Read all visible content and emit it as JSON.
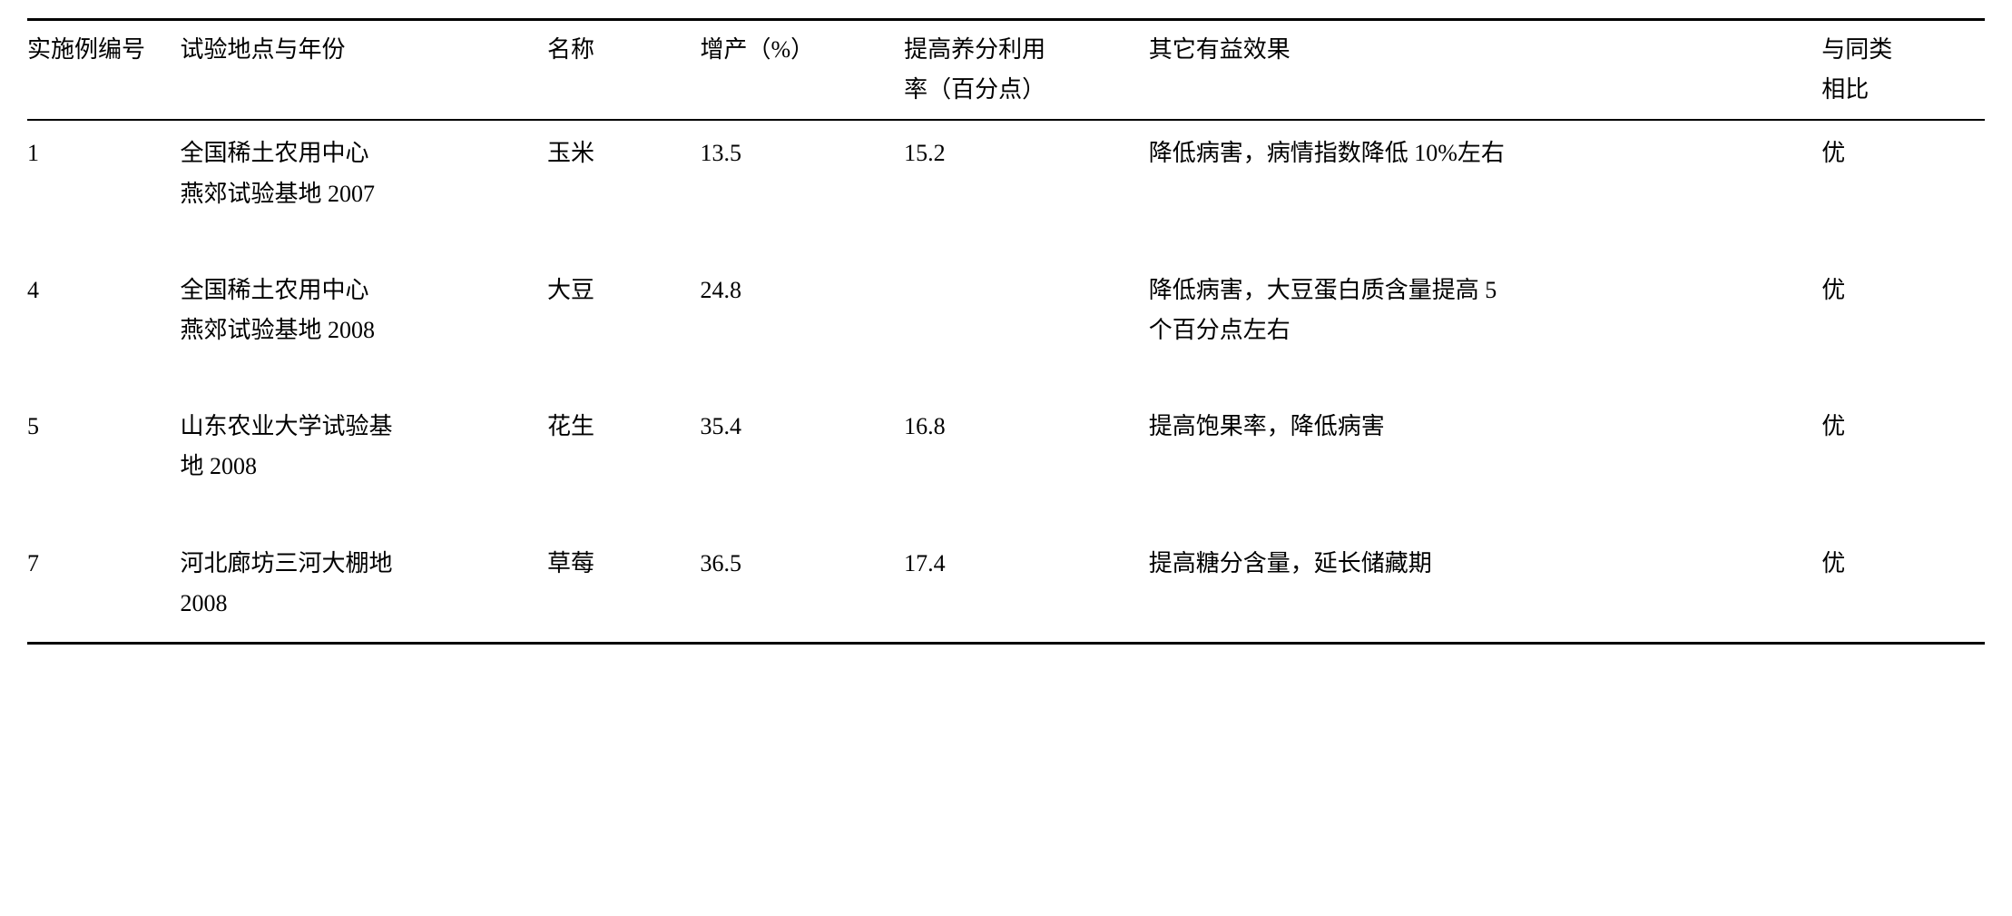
{
  "table": {
    "headers": {
      "id": "实施例编号",
      "location": "试验地点与年份",
      "name": "名称",
      "yield": "增产（%）",
      "nutrient_line1": "提高养分利用",
      "nutrient_line2": "率（百分点）",
      "benefit": "其它有益效果",
      "compare_line1": "与同类",
      "compare_line2": "相比"
    },
    "rows": [
      {
        "id": "1",
        "location_line1": "全国稀土农用中心",
        "location_line2": "燕郊试验基地 2007",
        "name": "玉米",
        "yield": "13.5",
        "nutrient": "15.2",
        "benefit": "降低病害，病情指数降低 10%左右",
        "compare": "优"
      },
      {
        "id": "4",
        "location_line1": "全国稀土农用中心",
        "location_line2": "燕郊试验基地 2008",
        "name": "大豆",
        "yield": "24.8",
        "nutrient": "",
        "benefit_line1": "降低病害，大豆蛋白质含量提高 5",
        "benefit_line2": "个百分点左右",
        "compare": "优"
      },
      {
        "id": "5",
        "location_line1": "山东农业大学试验基",
        "location_line2": "地 2008",
        "name": "花生",
        "yield": "35.4",
        "nutrient": "16.8",
        "benefit": "提高饱果率，降低病害",
        "compare": "优"
      },
      {
        "id": "7",
        "location_line1": "河北廊坊三河大棚地",
        "location_line2": "2008",
        "name": "草莓",
        "yield": "36.5",
        "nutrient": "17.4",
        "benefit": "提高糖分含量，延长储藏期",
        "compare": "优"
      }
    ]
  }
}
